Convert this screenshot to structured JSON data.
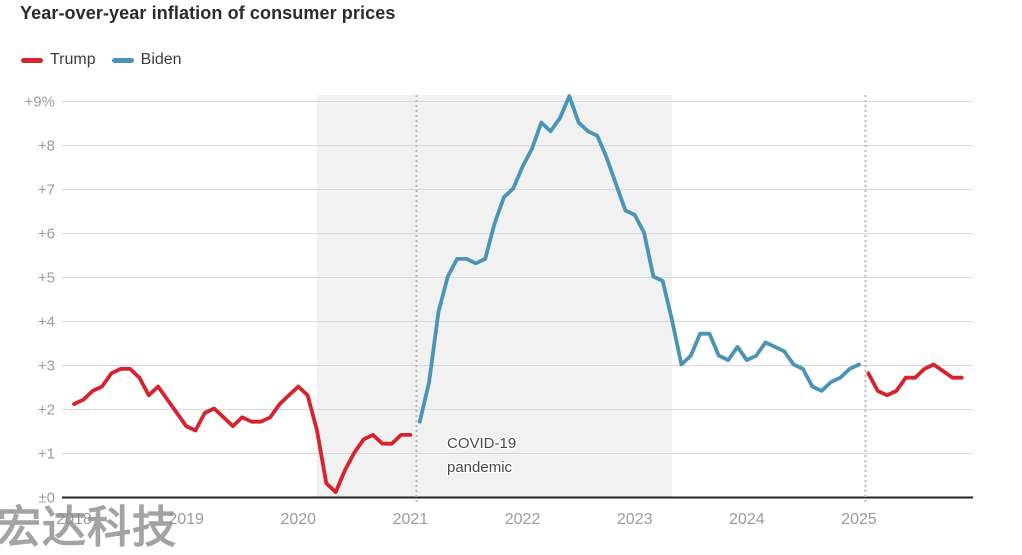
{
  "header": {
    "title": "Year-over-year inflation of consumer prices"
  },
  "legend": {
    "items": [
      {
        "label": "Trump",
        "color": "#d6232e"
      },
      {
        "label": "Biden",
        "color": "#4a94b5"
      }
    ]
  },
  "annotation": {
    "line1": "COVID-19",
    "line2": "pandemic"
  },
  "watermark": {
    "text": "宏达科技"
  },
  "colors": {
    "trump": "#d6232e",
    "biden": "#4a94b5",
    "grid": "#d8d8d8",
    "axis": "#262626",
    "tick_text": "#9b9b9b",
    "shaded_region": "#f1f1f1",
    "event_line": "#b9b9b9"
  },
  "chart_data": {
    "type": "line",
    "title": "Year-over-year inflation of consumer prices",
    "ylabel": "",
    "xlabel": "",
    "unit": "% change year-over-year",
    "ylim": [
      0,
      9.5
    ],
    "grid": true,
    "legend_position": "top-left",
    "x_domain": [
      "2018-01",
      "2025-12"
    ],
    "y_ticks": [
      {
        "value": 9,
        "label": "+9%"
      },
      {
        "value": 8,
        "label": "+8"
      },
      {
        "value": 7,
        "label": "+7"
      },
      {
        "value": 6,
        "label": "+6"
      },
      {
        "value": 5,
        "label": "+5"
      },
      {
        "value": 4,
        "label": "+4"
      },
      {
        "value": 3,
        "label": "+3"
      },
      {
        "value": 2,
        "label": "+2"
      },
      {
        "value": 1,
        "label": "+1"
      },
      {
        "value": 0,
        "label": "±0"
      }
    ],
    "x_ticks": [
      "2018",
      "2019",
      "2020",
      "2021",
      "2022",
      "2023",
      "2024",
      "2025"
    ],
    "series": [
      {
        "name": "Trump",
        "color_key": "trump",
        "start": "2018-01",
        "values": [
          2.1,
          2.2,
          2.4,
          2.5,
          2.8,
          2.9,
          2.9,
          2.7,
          2.3,
          2.5,
          2.2,
          1.9,
          1.6,
          1.5,
          1.9,
          2.0,
          1.8,
          1.6,
          1.8,
          1.7,
          1.7,
          1.8,
          2.1,
          2.3,
          2.5,
          2.3,
          1.5,
          0.3,
          0.1,
          0.6,
          1.0,
          1.3,
          1.4,
          1.2,
          1.2,
          1.4,
          1.4
        ]
      },
      {
        "name": "Biden",
        "color_key": "biden",
        "start": "2021-02",
        "values": [
          1.7,
          2.6,
          4.2,
          5.0,
          5.4,
          5.4,
          5.3,
          5.4,
          6.2,
          6.8,
          7.0,
          7.5,
          7.9,
          8.5,
          8.3,
          8.6,
          9.1,
          8.5,
          8.3,
          8.2,
          7.7,
          7.1,
          6.5,
          6.4,
          6.0,
          5.0,
          4.9,
          4.0,
          3.0,
          3.2,
          3.7,
          3.7,
          3.2,
          3.1,
          3.4,
          3.1,
          3.2,
          3.5,
          3.4,
          3.3,
          3.0,
          2.9,
          2.5,
          2.4,
          2.6,
          2.7,
          2.9,
          3.0
        ]
      },
      {
        "name": "Trump",
        "color_key": "trump",
        "start": "2025-02",
        "values": [
          2.8,
          2.4,
          2.3,
          2.4,
          2.7,
          2.7,
          2.9,
          3.0,
          2.85,
          2.7,
          2.7
        ]
      }
    ],
    "shaded_region": {
      "label": "COVID-19 pandemic",
      "start": "2020-03",
      "end": "2023-05"
    },
    "event_lines": [
      {
        "date": "2021-01-20"
      },
      {
        "date": "2025-01-20"
      }
    ]
  }
}
